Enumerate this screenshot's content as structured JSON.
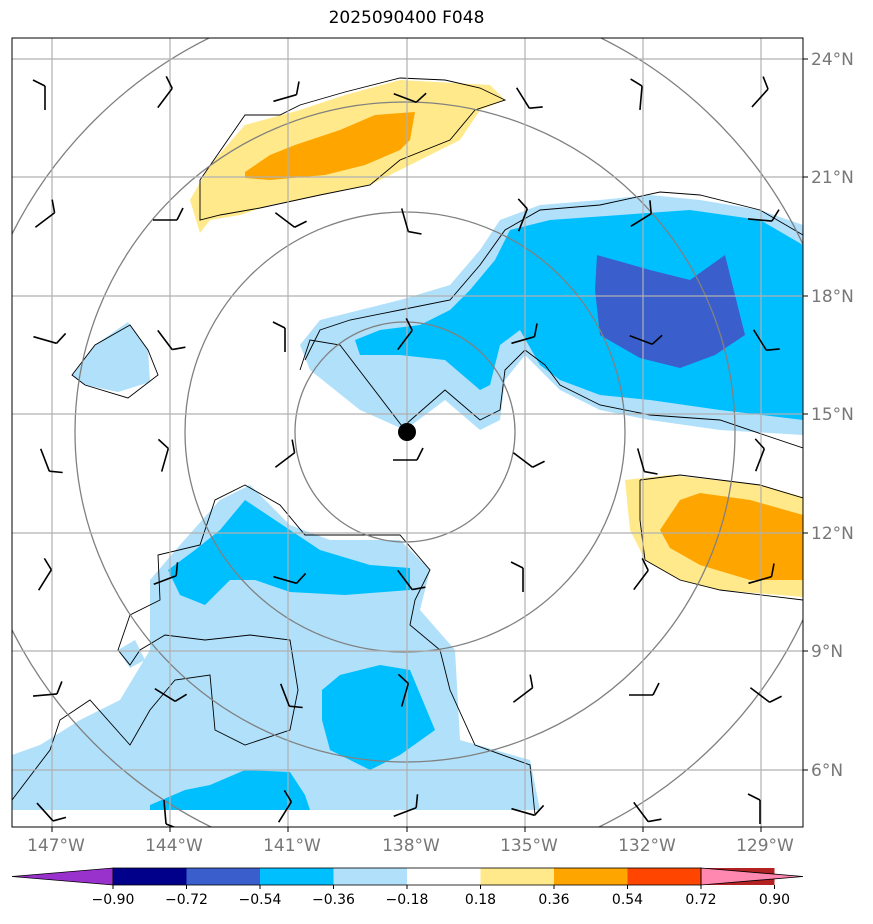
{
  "chart_data": {
    "type": "contour map",
    "title": "2025090400 F048",
    "lon_ticks": [
      "147°W",
      "144°W",
      "141°W",
      "138°W",
      "135°W",
      "132°W",
      "129°W"
    ],
    "lat_ticks": [
      "24°N",
      "21°N",
      "18°N",
      "15°N",
      "12°N",
      "9°N",
      "6°N"
    ],
    "grid": true,
    "center_marker": {
      "lon": -138,
      "lat": 14.5
    },
    "range_rings": 4,
    "colorbar": {
      "levels": [
        "−0.90",
        "−0.72",
        "−0.54",
        "−0.36",
        "−0.18",
        "0.18",
        "0.36",
        "0.54",
        "0.72",
        "0.90"
      ],
      "colors": [
        "#9932cc",
        "#00008b",
        "#3a5fcd",
        "#00bfff",
        "#b0e0fa",
        "#ffffff",
        "#ffe98a",
        "#ffa500",
        "#ff4500",
        "#b22222",
        "#ff88b0"
      ],
      "extend": "both"
    },
    "contour_fill": [
      {
        "level": "−0.18 to −0.36",
        "color": "#b0e0fa"
      },
      {
        "level": "−0.36 to −0.54",
        "color": "#00bfff"
      },
      {
        "level": "−0.54 to −0.72",
        "color": "#3a5fcd"
      },
      {
        "level": "0.18 to 0.36",
        "color": "#ffe98a"
      },
      {
        "level": "0.36 to 0.54",
        "color": "#ffa500"
      }
    ]
  }
}
